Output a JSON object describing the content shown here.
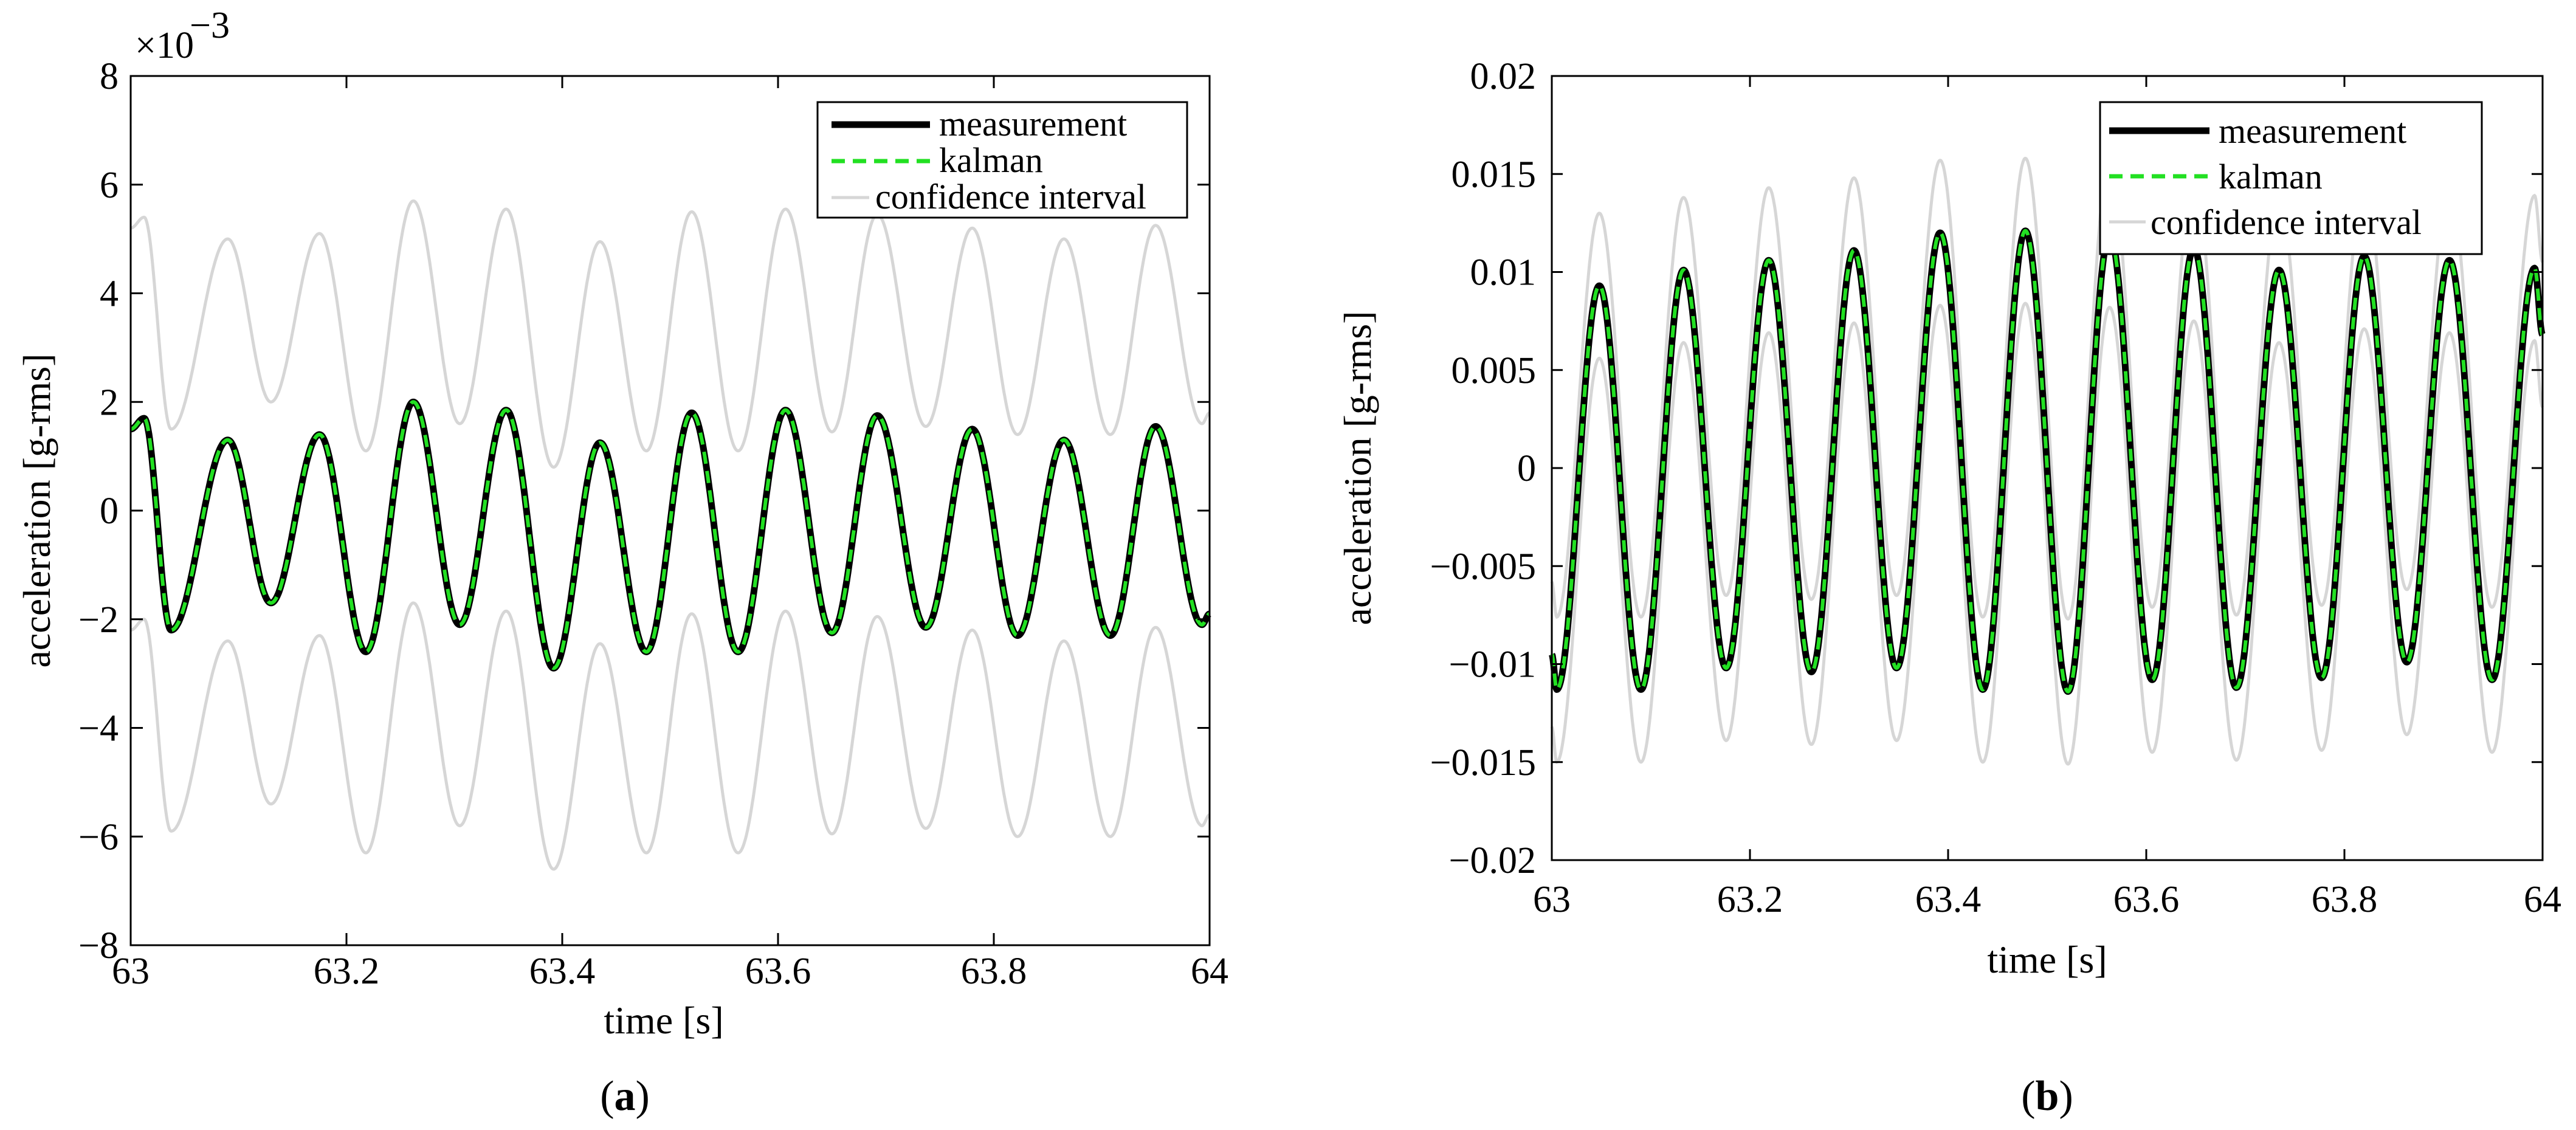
{
  "chart_data": [
    {
      "type": "line",
      "panel": "a",
      "caption_letter": "a",
      "xlabel": "time [s]",
      "ylabel": "acceleration [g-rms]",
      "exponent_label": "×10",
      "exponent_power": "−3",
      "xlim": [
        63,
        64
      ],
      "ylim": [
        -8,
        8
      ],
      "xticks": [
        63,
        63.2,
        63.4,
        63.6,
        63.8,
        64
      ],
      "xtick_labels": [
        "63",
        "63.2",
        "63.4",
        "63.6",
        "63.8",
        "64"
      ],
      "yticks": [
        -8,
        -6,
        -4,
        -2,
        0,
        2,
        4,
        6,
        8
      ],
      "ytick_labels": [
        "−8",
        "−6",
        "−4",
        "−2",
        "0",
        "2",
        "4",
        "6",
        "8"
      ],
      "legend": [
        "measurement",
        "kalman",
        "confidence interval"
      ],
      "legend_position": "top-right",
      "series_colors": {
        "measurement": "#000000",
        "kalman": "#22e022",
        "confidence": "#d6d6d6"
      },
      "signal": {
        "start_time": 63.0,
        "start_value": 1.5,
        "extrema": [
          {
            "t": 63.0,
            "v": 1.5
          },
          {
            "t": 63.0125,
            "v": 1.7
          },
          {
            "t": 63.0375,
            "v": -2.2
          },
          {
            "t": 63.09,
            "v": 1.3
          },
          {
            "t": 63.13,
            "v": -1.7
          },
          {
            "t": 63.175,
            "v": 1.4
          },
          {
            "t": 63.218,
            "v": -2.6
          },
          {
            "t": 63.262,
            "v": 2.0
          },
          {
            "t": 63.305,
            "v": -2.1
          },
          {
            "t": 63.348,
            "v": 1.85
          },
          {
            "t": 63.392,
            "v": -2.9
          },
          {
            "t": 63.435,
            "v": 1.25
          },
          {
            "t": 63.478,
            "v": -2.6
          },
          {
            "t": 63.52,
            "v": 1.8
          },
          {
            "t": 63.563,
            "v": -2.6
          },
          {
            "t": 63.607,
            "v": 1.85
          },
          {
            "t": 63.65,
            "v": -2.25
          },
          {
            "t": 63.692,
            "v": 1.75
          },
          {
            "t": 63.737,
            "v": -2.15
          },
          {
            "t": 63.78,
            "v": 1.5
          },
          {
            "t": 63.822,
            "v": -2.3
          },
          {
            "t": 63.865,
            "v": 1.3
          },
          {
            "t": 63.908,
            "v": -2.3
          },
          {
            "t": 63.95,
            "v": 1.55
          },
          {
            "t": 63.993,
            "v": -2.1
          },
          {
            "t": 64.0,
            "v": -1.9
          }
        ]
      },
      "confidence_offset": 3.7
    },
    {
      "type": "line",
      "panel": "b",
      "caption_letter": "b",
      "xlabel": "time [s]",
      "ylabel": "acceleration [g-rms]",
      "xlim": [
        63,
        64
      ],
      "ylim": [
        -0.02,
        0.02
      ],
      "xticks": [
        63,
        63.2,
        63.4,
        63.6,
        63.8,
        64
      ],
      "xtick_labels": [
        "63",
        "63.2",
        "63.4",
        "63.6",
        "63.8",
        "64"
      ],
      "yticks": [
        -0.02,
        -0.015,
        -0.01,
        -0.005,
        0,
        0.005,
        0.01,
        0.015,
        0.02
      ],
      "ytick_labels": [
        "−0.02",
        "−0.015",
        "−0.01",
        "−0.005",
        "0",
        "0.005",
        "0.01",
        "0.015",
        "0.02"
      ],
      "legend": [
        "measurement",
        "kalman",
        "confidence interval"
      ],
      "legend_position": "top-right",
      "series_colors": {
        "measurement": "#000000",
        "kalman": "#22e022",
        "confidence": "#d6d6d6"
      },
      "signal": {
        "start_time": 63.0,
        "start_value": -0.0095,
        "extrema": [
          {
            "t": 63.0,
            "v": -0.0095
          },
          {
            "t": 63.005,
            "v": -0.0113
          },
          {
            "t": 63.048,
            "v": 0.0093
          },
          {
            "t": 63.09,
            "v": -0.0113
          },
          {
            "t": 63.133,
            "v": 0.0101
          },
          {
            "t": 63.176,
            "v": -0.0102
          },
          {
            "t": 63.219,
            "v": 0.0106
          },
          {
            "t": 63.262,
            "v": -0.0104
          },
          {
            "t": 63.305,
            "v": 0.0111
          },
          {
            "t": 63.348,
            "v": -0.0102
          },
          {
            "t": 63.392,
            "v": 0.012
          },
          {
            "t": 63.435,
            "v": -0.0113
          },
          {
            "t": 63.478,
            "v": 0.0121
          },
          {
            "t": 63.521,
            "v": -0.0114
          },
          {
            "t": 63.563,
            "v": 0.0119
          },
          {
            "t": 63.606,
            "v": -0.0108
          },
          {
            "t": 63.648,
            "v": 0.0112
          },
          {
            "t": 63.691,
            "v": -0.0112
          },
          {
            "t": 63.734,
            "v": 0.0101
          },
          {
            "t": 63.777,
            "v": -0.0107
          },
          {
            "t": 63.82,
            "v": 0.0108
          },
          {
            "t": 63.863,
            "v": -0.0099
          },
          {
            "t": 63.906,
            "v": 0.0106
          },
          {
            "t": 63.949,
            "v": -0.0108
          },
          {
            "t": 63.992,
            "v": 0.0102
          },
          {
            "t": 64.0,
            "v": 0.0068
          }
        ]
      },
      "confidence_offset": 0.0037
    }
  ]
}
